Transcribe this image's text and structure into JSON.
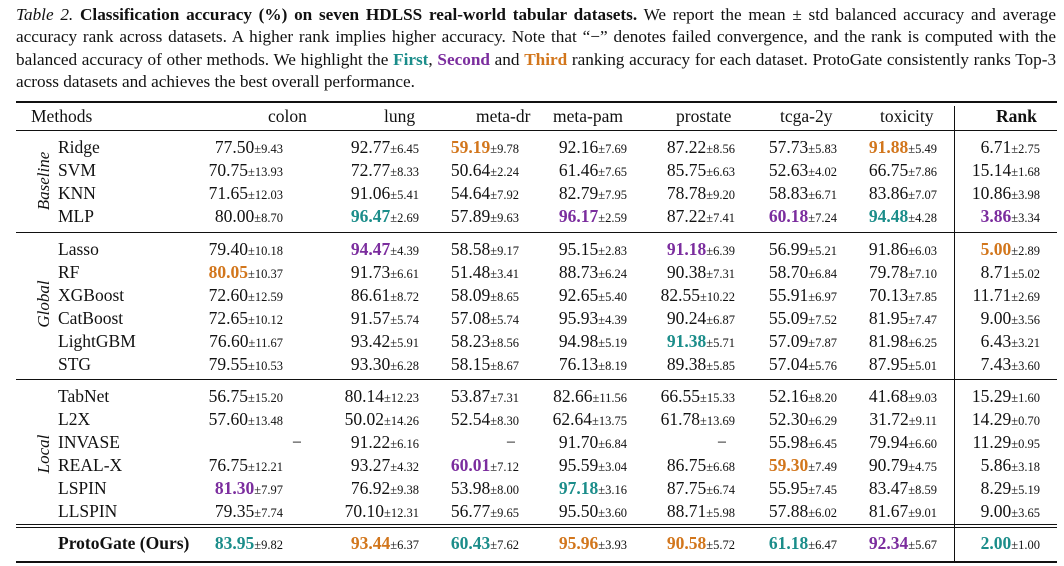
{
  "caption": {
    "label": "Table 2.",
    "bold_title": "Classification accuracy (%) on seven HDLSS real-world tabular datasets.",
    "text_1": "We report the mean ± std balanced accuracy and average accuracy rank across datasets. A higher rank implies higher accuracy. Note that “−” denotes failed convergence, and the rank is computed with the balanced accuracy of other methods. We highlight the",
    "first": "First",
    "comma": ",",
    "second": "Second",
    "and": "and",
    "third": "Third",
    "text_2": "ranking accuracy for each dataset. ProtoGate consistently ranks Top-3 across datasets and achieves the best overall performance."
  },
  "colors": {
    "first": "#1b8d8a",
    "second": "#7b2d9e",
    "third": "#d2761c"
  },
  "header": {
    "methods": "Methods",
    "columns": [
      "colon",
      "lung",
      "meta-dr",
      "meta-pam",
      "prostate",
      "tcga-2y",
      "toxicity"
    ],
    "rank": "Rank"
  },
  "groups": [
    {
      "label": "Baseline",
      "rows": [
        {
          "method": "Ridge",
          "cells": [
            {
              "m": "77.50",
              "s": "±9.43",
              "r": 0
            },
            {
              "m": "92.77",
              "s": "±6.45",
              "r": 0
            },
            {
              "m": "59.19",
              "s": "±9.78",
              "r": 3
            },
            {
              "m": "92.16",
              "s": "±7.69",
              "r": 0
            },
            {
              "m": "87.22",
              "s": "±8.56",
              "r": 0
            },
            {
              "m": "57.73",
              "s": "±5.83",
              "r": 0
            },
            {
              "m": "91.88",
              "s": "±5.49",
              "r": 3
            },
            {
              "m": "6.71",
              "s": "±2.75",
              "r": 0
            }
          ]
        },
        {
          "method": "SVM",
          "cells": [
            {
              "m": "70.75",
              "s": "±13.93",
              "r": 0
            },
            {
              "m": "72.77",
              "s": "±8.33",
              "r": 0
            },
            {
              "m": "50.64",
              "s": "±2.24",
              "r": 0
            },
            {
              "m": "61.46",
              "s": "±7.65",
              "r": 0
            },
            {
              "m": "85.75",
              "s": "±6.63",
              "r": 0
            },
            {
              "m": "52.63",
              "s": "±4.02",
              "r": 0
            },
            {
              "m": "66.75",
              "s": "±7.86",
              "r": 0
            },
            {
              "m": "15.14",
              "s": "±1.68",
              "r": 0
            }
          ]
        },
        {
          "method": "KNN",
          "cells": [
            {
              "m": "71.65",
              "s": "±12.03",
              "r": 0
            },
            {
              "m": "91.06",
              "s": "±5.41",
              "r": 0
            },
            {
              "m": "54.64",
              "s": "±7.92",
              "r": 0
            },
            {
              "m": "82.79",
              "s": "±7.95",
              "r": 0
            },
            {
              "m": "78.78",
              "s": "±9.20",
              "r": 0
            },
            {
              "m": "58.83",
              "s": "±6.71",
              "r": 0
            },
            {
              "m": "83.86",
              "s": "±7.07",
              "r": 0
            },
            {
              "m": "10.86",
              "s": "±3.98",
              "r": 0
            }
          ]
        },
        {
          "method": "MLP",
          "cells": [
            {
              "m": "80.00",
              "s": "±8.70",
              "r": 0
            },
            {
              "m": "96.47",
              "s": "±2.69",
              "r": 1
            },
            {
              "m": "57.89",
              "s": "±9.63",
              "r": 0
            },
            {
              "m": "96.17",
              "s": "±2.59",
              "r": 2
            },
            {
              "m": "87.22",
              "s": "±7.41",
              "r": 0
            },
            {
              "m": "60.18",
              "s": "±7.24",
              "r": 2
            },
            {
              "m": "94.48",
              "s": "±4.28",
              "r": 1
            },
            {
              "m": "3.86",
              "s": "±3.34",
              "r": 2
            }
          ]
        }
      ]
    },
    {
      "label": "Global",
      "rows": [
        {
          "method": "Lasso",
          "cells": [
            {
              "m": "79.40",
              "s": "±10.18",
              "r": 0
            },
            {
              "m": "94.47",
              "s": "±4.39",
              "r": 2
            },
            {
              "m": "58.58",
              "s": "±9.17",
              "r": 0
            },
            {
              "m": "95.15",
              "s": "±2.83",
              "r": 0
            },
            {
              "m": "91.18",
              "s": "±6.39",
              "r": 2
            },
            {
              "m": "56.99",
              "s": "±5.21",
              "r": 0
            },
            {
              "m": "91.86",
              "s": "±6.03",
              "r": 0
            },
            {
              "m": "5.00",
              "s": "±2.89",
              "r": 3
            }
          ]
        },
        {
          "method": "RF",
          "cells": [
            {
              "m": "80.05",
              "s": "±10.37",
              "r": 3
            },
            {
              "m": "91.73",
              "s": "±6.61",
              "r": 0
            },
            {
              "m": "51.48",
              "s": "±3.41",
              "r": 0
            },
            {
              "m": "88.73",
              "s": "±6.24",
              "r": 0
            },
            {
              "m": "90.38",
              "s": "±7.31",
              "r": 0
            },
            {
              "m": "58.70",
              "s": "±6.84",
              "r": 0
            },
            {
              "m": "79.78",
              "s": "±7.10",
              "r": 0
            },
            {
              "m": "8.71",
              "s": "±5.02",
              "r": 0
            }
          ]
        },
        {
          "method": "XGBoost",
          "cells": [
            {
              "m": "72.60",
              "s": "±12.59",
              "r": 0
            },
            {
              "m": "86.61",
              "s": "±8.72",
              "r": 0
            },
            {
              "m": "58.09",
              "s": "±8.65",
              "r": 0
            },
            {
              "m": "92.65",
              "s": "±5.40",
              "r": 0
            },
            {
              "m": "82.55",
              "s": "±10.22",
              "r": 0
            },
            {
              "m": "55.91",
              "s": "±6.97",
              "r": 0
            },
            {
              "m": "70.13",
              "s": "±7.85",
              "r": 0
            },
            {
              "m": "11.71",
              "s": "±2.69",
              "r": 0
            }
          ]
        },
        {
          "method": "CatBoost",
          "cells": [
            {
              "m": "72.65",
              "s": "±10.12",
              "r": 0
            },
            {
              "m": "91.57",
              "s": "±5.74",
              "r": 0
            },
            {
              "m": "57.08",
              "s": "±5.74",
              "r": 0
            },
            {
              "m": "95.93",
              "s": "±4.39",
              "r": 0
            },
            {
              "m": "90.24",
              "s": "±6.87",
              "r": 0
            },
            {
              "m": "55.09",
              "s": "±7.52",
              "r": 0
            },
            {
              "m": "81.95",
              "s": "±7.47",
              "r": 0
            },
            {
              "m": "9.00",
              "s": "±3.56",
              "r": 0
            }
          ]
        },
        {
          "method": "LightGBM",
          "cells": [
            {
              "m": "76.60",
              "s": "±11.67",
              "r": 0
            },
            {
              "m": "93.42",
              "s": "±5.91",
              "r": 0
            },
            {
              "m": "58.23",
              "s": "±8.56",
              "r": 0
            },
            {
              "m": "94.98",
              "s": "±5.19",
              "r": 0
            },
            {
              "m": "91.38",
              "s": "±5.71",
              "r": 1
            },
            {
              "m": "57.09",
              "s": "±7.87",
              "r": 0
            },
            {
              "m": "81.98",
              "s": "±6.25",
              "r": 0
            },
            {
              "m": "6.43",
              "s": "±3.21",
              "r": 0
            }
          ]
        },
        {
          "method": "STG",
          "cells": [
            {
              "m": "79.55",
              "s": "±10.53",
              "r": 0
            },
            {
              "m": "93.30",
              "s": "±6.28",
              "r": 0
            },
            {
              "m": "58.15",
              "s": "±8.67",
              "r": 0
            },
            {
              "m": "76.13",
              "s": "±8.19",
              "r": 0
            },
            {
              "m": "89.38",
              "s": "±5.85",
              "r": 0
            },
            {
              "m": "57.04",
              "s": "±5.76",
              "r": 0
            },
            {
              "m": "87.95",
              "s": "±5.01",
              "r": 0
            },
            {
              "m": "7.43",
              "s": "±3.60",
              "r": 0
            }
          ]
        }
      ]
    },
    {
      "label": "Local",
      "rows": [
        {
          "method": "TabNet",
          "cells": [
            {
              "m": "56.75",
              "s": "±15.20",
              "r": 0
            },
            {
              "m": "80.14",
              "s": "±12.23",
              "r": 0
            },
            {
              "m": "53.87",
              "s": "±7.31",
              "r": 0
            },
            {
              "m": "82.66",
              "s": "±11.56",
              "r": 0
            },
            {
              "m": "66.55",
              "s": "±15.33",
              "r": 0
            },
            {
              "m": "52.16",
              "s": "±8.20",
              "r": 0
            },
            {
              "m": "41.68",
              "s": "±9.03",
              "r": 0
            },
            {
              "m": "15.29",
              "s": "±1.60",
              "r": 0
            }
          ]
        },
        {
          "method": "L2X",
          "cells": [
            {
              "m": "57.60",
              "s": "±13.48",
              "r": 0
            },
            {
              "m": "50.02",
              "s": "±14.26",
              "r": 0
            },
            {
              "m": "52.54",
              "s": "±8.30",
              "r": 0
            },
            {
              "m": "62.64",
              "s": "±13.75",
              "r": 0
            },
            {
              "m": "61.78",
              "s": "±13.69",
              "r": 0
            },
            {
              "m": "52.30",
              "s": "±6.29",
              "r": 0
            },
            {
              "m": "31.72",
              "s": "±9.11",
              "r": 0
            },
            {
              "m": "14.29",
              "s": "±0.70",
              "r": 0
            }
          ]
        },
        {
          "method": "INVASE",
          "cells": [
            {
              "dash": "−"
            },
            {
              "m": "91.22",
              "s": "±6.16",
              "r": 0
            },
            {
              "dash": "−"
            },
            {
              "m": "91.70",
              "s": "±6.84",
              "r": 0
            },
            {
              "dash": "−"
            },
            {
              "m": "55.98",
              "s": "±6.45",
              "r": 0
            },
            {
              "m": "79.94",
              "s": "±6.60",
              "r": 0
            },
            {
              "m": "11.29",
              "s": "±0.95",
              "r": 0
            }
          ]
        },
        {
          "method": "REAL-X",
          "cells": [
            {
              "m": "76.75",
              "s": "±12.21",
              "r": 0
            },
            {
              "m": "93.27",
              "s": "±4.32",
              "r": 0
            },
            {
              "m": "60.01",
              "s": "±7.12",
              "r": 2
            },
            {
              "m": "95.59",
              "s": "±3.04",
              "r": 0
            },
            {
              "m": "86.75",
              "s": "±6.68",
              "r": 0
            },
            {
              "m": "59.30",
              "s": "±7.49",
              "r": 3
            },
            {
              "m": "90.79",
              "s": "±4.75",
              "r": 0
            },
            {
              "m": "5.86",
              "s": "±3.18",
              "r": 0
            }
          ]
        },
        {
          "method": "LSPIN",
          "cells": [
            {
              "m": "81.30",
              "s": "±7.97",
              "r": 2
            },
            {
              "m": "76.92",
              "s": "±9.38",
              "r": 0
            },
            {
              "m": "53.98",
              "s": "±8.00",
              "r": 0
            },
            {
              "m": "97.18",
              "s": "±3.16",
              "r": 1
            },
            {
              "m": "87.75",
              "s": "±6.74",
              "r": 0
            },
            {
              "m": "55.95",
              "s": "±7.45",
              "r": 0
            },
            {
              "m": "83.47",
              "s": "±8.59",
              "r": 0
            },
            {
              "m": "8.29",
              "s": "±5.19",
              "r": 0
            }
          ]
        },
        {
          "method": "LLSPIN",
          "cells": [
            {
              "m": "79.35",
              "s": "±7.74",
              "r": 0
            },
            {
              "m": "70.10",
              "s": "±12.31",
              "r": 0
            },
            {
              "m": "56.77",
              "s": "±9.65",
              "r": 0
            },
            {
              "m": "95.50",
              "s": "±3.60",
              "r": 0
            },
            {
              "m": "88.71",
              "s": "±5.98",
              "r": 0
            },
            {
              "m": "57.88",
              "s": "±6.02",
              "r": 0
            },
            {
              "m": "81.67",
              "s": "±9.01",
              "r": 0
            },
            {
              "m": "9.00",
              "s": "±3.65",
              "r": 0
            }
          ]
        }
      ]
    }
  ],
  "ours": {
    "method": "ProtoGate (Ours)",
    "cells": [
      {
        "m": "83.95",
        "s": "±9.82",
        "r": 1
      },
      {
        "m": "93.44",
        "s": "±6.37",
        "r": 3
      },
      {
        "m": "60.43",
        "s": "±7.62",
        "r": 1
      },
      {
        "m": "95.96",
        "s": "±3.93",
        "r": 3
      },
      {
        "m": "90.58",
        "s": "±5.72",
        "r": 3
      },
      {
        "m": "61.18",
        "s": "±6.47",
        "r": 1
      },
      {
        "m": "92.34",
        "s": "±5.67",
        "r": 2
      },
      {
        "m": "2.00",
        "s": "±1.00",
        "r": 1
      }
    ]
  }
}
